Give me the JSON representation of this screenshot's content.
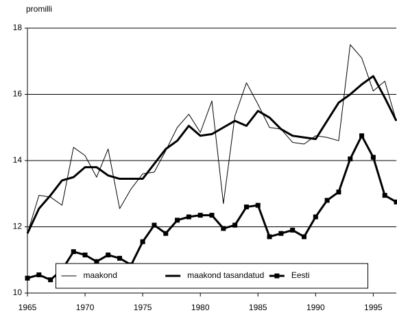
{
  "chart_data": {
    "type": "line",
    "y_label": "promilli",
    "x": [
      1965,
      1966,
      1967,
      1968,
      1969,
      1970,
      1971,
      1972,
      1973,
      1974,
      1975,
      1976,
      1977,
      1978,
      1979,
      1980,
      1981,
      1982,
      1983,
      1984,
      1985,
      1986,
      1987,
      1988,
      1989,
      1990,
      1991,
      1992,
      1993,
      1994,
      1995,
      1996,
      1997
    ],
    "series": [
      {
        "name": "maakond",
        "color": "#000000",
        "width": 1,
        "marker": "none",
        "values": [
          11.8,
          12.95,
          12.9,
          12.65,
          14.4,
          14.15,
          13.5,
          14.35,
          12.55,
          13.15,
          13.6,
          13.65,
          14.3,
          15.0,
          15.4,
          14.85,
          15.8,
          12.7,
          15.35,
          16.35,
          15.7,
          15.0,
          14.95,
          14.55,
          14.5,
          14.75,
          14.7,
          14.6,
          17.5,
          17.1,
          16.1,
          16.4,
          15.2
        ]
      },
      {
        "name": "maakond tasandatud",
        "color": "#000000",
        "width": 3,
        "marker": "none",
        "values": [
          11.8,
          12.55,
          12.95,
          13.4,
          13.5,
          13.8,
          13.8,
          13.55,
          13.45,
          13.45,
          13.45,
          13.9,
          14.35,
          14.6,
          15.05,
          14.75,
          14.8,
          15.0,
          15.2,
          15.05,
          15.5,
          15.3,
          14.95,
          14.75,
          14.7,
          14.65,
          15.2,
          15.75,
          16.0,
          16.3,
          16.55,
          15.9,
          15.2
        ]
      },
      {
        "name": "Eesti",
        "color": "#000000",
        "width": 3,
        "marker": "square",
        "values": [
          10.45,
          10.55,
          10.4,
          10.7,
          11.25,
          11.15,
          10.95,
          11.15,
          11.05,
          10.85,
          11.55,
          12.05,
          11.8,
          12.2,
          12.3,
          12.35,
          12.35,
          11.95,
          12.05,
          12.6,
          12.65,
          11.7,
          11.8,
          11.9,
          11.7,
          12.3,
          12.8,
          13.05,
          14.05,
          14.75,
          14.1,
          12.95,
          12.75
        ]
      }
    ],
    "xlim": [
      1965,
      1997
    ],
    "xticks": [
      1965,
      1970,
      1975,
      1980,
      1985,
      1990,
      1995
    ],
    "ylim": [
      10,
      18
    ],
    "yticks": [
      10,
      12,
      14,
      16,
      18
    ],
    "grid": true,
    "legend": "bottom"
  }
}
